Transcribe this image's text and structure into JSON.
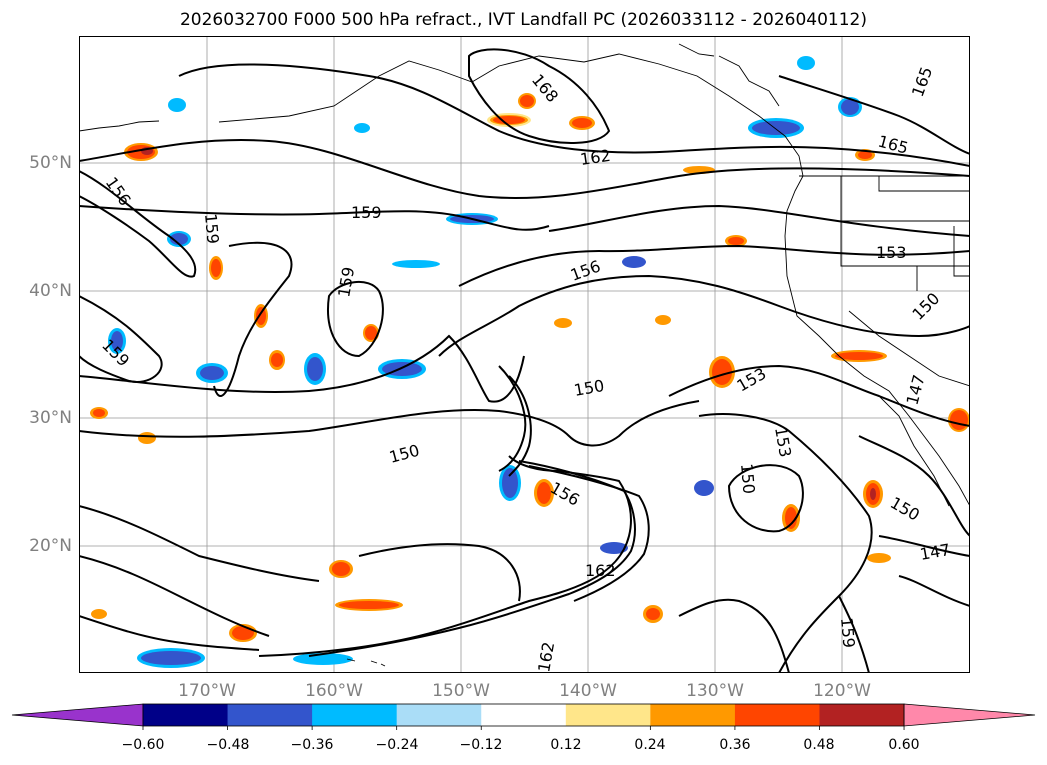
{
  "title": "2026032700 F000 500 hPa refract., IVT Landfall PC (2026033112 - 2026040112)",
  "map": {
    "lat_labels": [
      "50°N",
      "40°N",
      "30°N",
      "20°N"
    ],
    "lon_labels": [
      "170°W",
      "160°W",
      "150°W",
      "140°W",
      "130°W",
      "120°W"
    ],
    "contour_labels": [
      "168",
      "165",
      "165",
      "162",
      "159",
      "159",
      "159",
      "156",
      "156",
      "159",
      "156",
      "153",
      "153",
      "153",
      "150",
      "150",
      "150",
      "150",
      "150",
      "147",
      "147",
      "162",
      "162",
      "159"
    ],
    "colors": {
      "contour": "#000000",
      "grid": "#999999",
      "coast": "#000000"
    }
  },
  "colorbar": {
    "ticks": [
      "−0.60",
      "−0.48",
      "−0.36",
      "−0.24",
      "−0.12",
      "0.12",
      "0.24",
      "0.36",
      "0.48",
      "0.60"
    ],
    "colors": [
      "#9933cc",
      "#000088",
      "#3355cc",
      "#00bbff",
      "#aaddf7",
      "#ffffff",
      "#ffe68a",
      "#ff9900",
      "#ff4500",
      "#b22222",
      "#ff88aa"
    ]
  }
}
